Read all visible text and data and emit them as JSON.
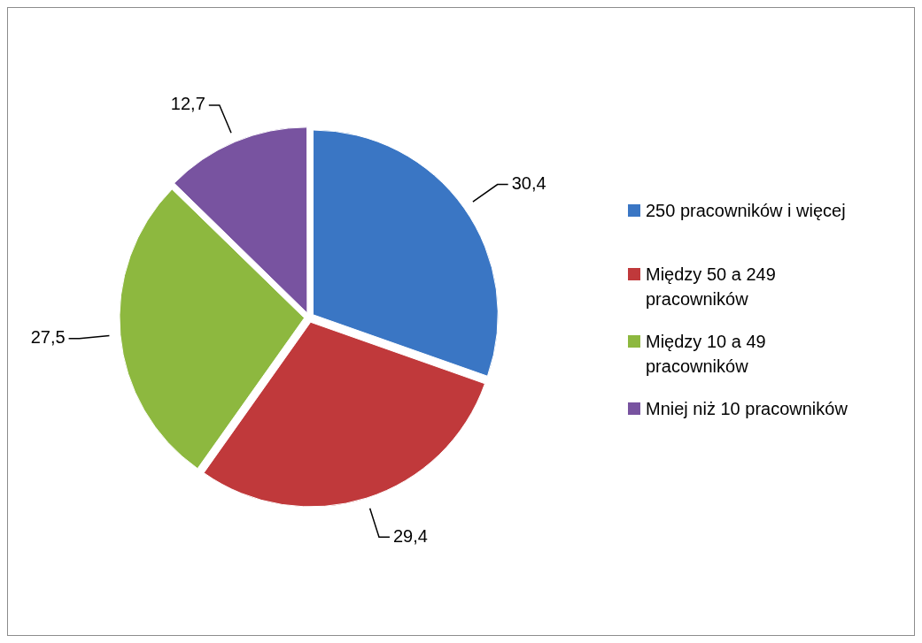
{
  "chart_data": {
    "type": "pie",
    "categories": [
      "250 pracowników i więcej",
      "Między 50 a 249 pracowników",
      "Między 10 a 49 pracowników",
      "Mniej niż 10 pracowników"
    ],
    "values": [
      30.4,
      29.4,
      27.5,
      12.7
    ],
    "colors": [
      "#3a76c4",
      "#c0393b",
      "#8db83f",
      "#7853a0"
    ],
    "value_labels": [
      "30,4",
      "29,4",
      "27,5",
      "12,7"
    ],
    "legend": "right"
  }
}
